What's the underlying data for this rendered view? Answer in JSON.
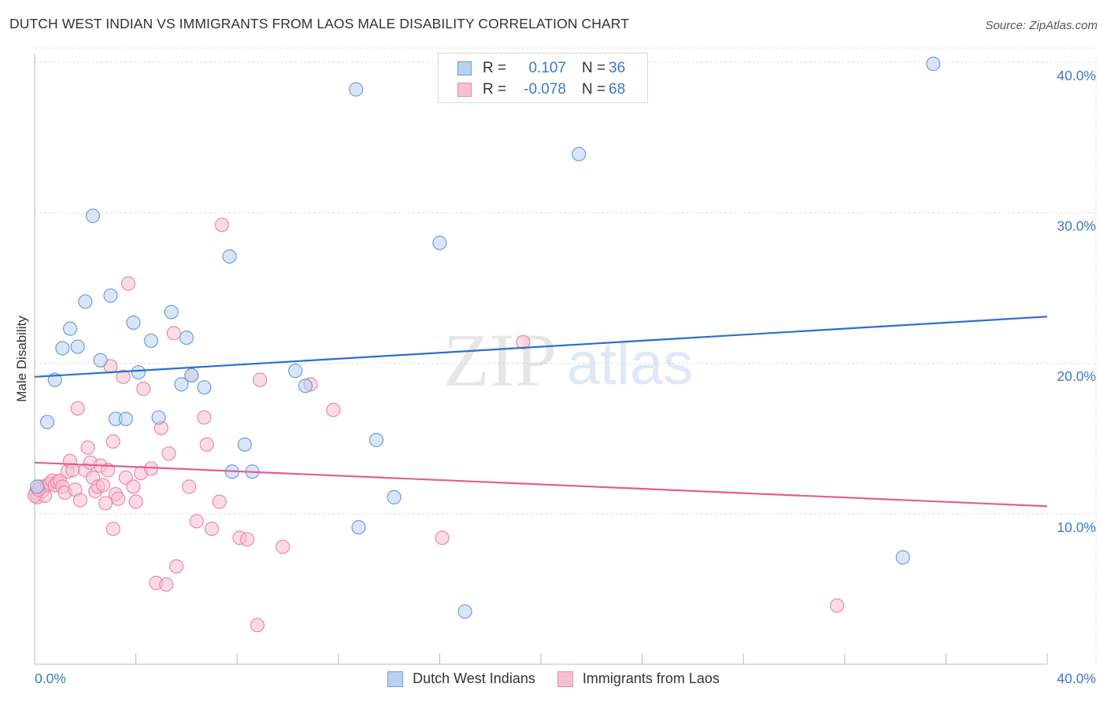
{
  "title": "DUTCH WEST INDIAN VS IMMIGRANTS FROM LAOS MALE DISABILITY CORRELATION CHART",
  "source": "Source: ZipAtlas.com",
  "watermark": {
    "zip": "ZIP",
    "atlas": "atlas"
  },
  "legend_top": {
    "rows": [
      {
        "r_label": "R =",
        "r_value": "0.107",
        "n_label": "N =",
        "n_value": "36"
      },
      {
        "r_label": "R =",
        "r_value": "-0.078",
        "n_label": "N =",
        "n_value": "68"
      }
    ]
  },
  "legend_bottom": [
    "Dutch West Indians",
    "Immigrants from Laos"
  ],
  "colors": {
    "blue_fill": "#b9d1f1",
    "blue_stroke": "#6f9fd8",
    "blue_line": "#2c6fcb",
    "pink_fill": "#f7bfd0",
    "pink_stroke": "#e98aa8",
    "pink_line": "#e0608f",
    "tick_text": "#3c79c7",
    "grid": "#dddddd"
  },
  "chart_data": {
    "type": "scatter",
    "title": "DUTCH WEST INDIAN VS IMMIGRANTS FROM LAOS MALE DISABILITY CORRELATION CHART",
    "xlabel": "",
    "ylabel": "Male Disability",
    "xlim": [
      0,
      40
    ],
    "ylim": [
      0,
      41
    ],
    "x_tick_labels": [
      "0.0%",
      "40.0%"
    ],
    "y_ticks": [
      10,
      20,
      30,
      40
    ],
    "y_tick_labels": [
      "10.0%",
      "20.0%",
      "30.0%",
      "40.0%"
    ],
    "grid": true,
    "series": [
      {
        "name": "Dutch West Indians",
        "r": 0.107,
        "n": 36,
        "trend": {
          "x": [
            0,
            40
          ],
          "y": [
            19.1,
            23.1
          ]
        },
        "points": [
          [
            0.1,
            11.8
          ],
          [
            0.5,
            16.1
          ],
          [
            0.8,
            18.9
          ],
          [
            1.1,
            21.0
          ],
          [
            1.4,
            22.3
          ],
          [
            1.7,
            21.1
          ],
          [
            2.0,
            24.1
          ],
          [
            2.3,
            29.8
          ],
          [
            2.6,
            20.2
          ],
          [
            3.0,
            24.5
          ],
          [
            3.2,
            16.3
          ],
          [
            3.6,
            16.3
          ],
          [
            3.9,
            22.7
          ],
          [
            4.1,
            19.4
          ],
          [
            4.6,
            21.5
          ],
          [
            4.9,
            16.4
          ],
          [
            5.4,
            23.4
          ],
          [
            5.8,
            18.6
          ],
          [
            6.0,
            21.7
          ],
          [
            6.2,
            19.2
          ],
          [
            6.7,
            18.4
          ],
          [
            7.7,
            27.1
          ],
          [
            7.8,
            12.8
          ],
          [
            8.3,
            14.6
          ],
          [
            8.6,
            12.8
          ],
          [
            10.3,
            19.5
          ],
          [
            10.7,
            18.5
          ],
          [
            12.7,
            38.2
          ],
          [
            12.8,
            9.1
          ],
          [
            13.5,
            14.9
          ],
          [
            14.2,
            11.1
          ],
          [
            16.0,
            28.0
          ],
          [
            17.0,
            3.5
          ],
          [
            21.5,
            33.9
          ],
          [
            34.3,
            7.1
          ],
          [
            35.5,
            39.9
          ]
        ]
      },
      {
        "name": "Immigrants from Laos",
        "r": -0.078,
        "n": 68,
        "trend": {
          "x": [
            0,
            40
          ],
          "y": [
            13.4,
            10.5
          ]
        },
        "points": [
          [
            0.05,
            11.4
          ],
          [
            0.1,
            11.1
          ],
          [
            0.2,
            11.8
          ],
          [
            0.3,
            11.5
          ],
          [
            0.4,
            11.2
          ],
          [
            0.5,
            11.9
          ],
          [
            0.6,
            12.0
          ],
          [
            0.7,
            12.2
          ],
          [
            0.8,
            11.9
          ],
          [
            0.9,
            12.1
          ],
          [
            1.0,
            12.2
          ],
          [
            1.1,
            11.8
          ],
          [
            1.2,
            11.4
          ],
          [
            1.3,
            12.8
          ],
          [
            1.4,
            13.5
          ],
          [
            1.5,
            12.9
          ],
          [
            1.6,
            11.6
          ],
          [
            1.7,
            17.0
          ],
          [
            1.8,
            10.9
          ],
          [
            2.0,
            12.9
          ],
          [
            2.1,
            14.4
          ],
          [
            2.2,
            13.4
          ],
          [
            2.3,
            12.4
          ],
          [
            2.4,
            11.5
          ],
          [
            2.5,
            11.8
          ],
          [
            2.6,
            13.2
          ],
          [
            2.7,
            11.9
          ],
          [
            2.8,
            10.7
          ],
          [
            2.9,
            12.9
          ],
          [
            3.0,
            19.8
          ],
          [
            3.1,
            9.0
          ],
          [
            3.1,
            14.8
          ],
          [
            3.2,
            11.3
          ],
          [
            3.3,
            11.0
          ],
          [
            3.5,
            19.1
          ],
          [
            3.6,
            12.4
          ],
          [
            3.7,
            25.3
          ],
          [
            3.9,
            11.8
          ],
          [
            4.0,
            10.8
          ],
          [
            4.2,
            12.7
          ],
          [
            4.3,
            18.3
          ],
          [
            4.6,
            13.0
          ],
          [
            4.8,
            5.4
          ],
          [
            5.0,
            15.7
          ],
          [
            5.2,
            5.3
          ],
          [
            5.3,
            14.0
          ],
          [
            5.5,
            22.0
          ],
          [
            5.6,
            6.5
          ],
          [
            6.1,
            11.8
          ],
          [
            6.2,
            19.2
          ],
          [
            6.4,
            9.5
          ],
          [
            6.7,
            16.4
          ],
          [
            6.8,
            14.6
          ],
          [
            7.0,
            9.0
          ],
          [
            7.3,
            10.8
          ],
          [
            7.4,
            29.2
          ],
          [
            8.1,
            8.4
          ],
          [
            8.4,
            8.3
          ],
          [
            8.8,
            2.6
          ],
          [
            8.9,
            18.9
          ],
          [
            9.8,
            7.8
          ],
          [
            10.9,
            18.6
          ],
          [
            11.8,
            16.9
          ],
          [
            16.1,
            8.4
          ],
          [
            19.3,
            21.4
          ],
          [
            31.7,
            3.9
          ],
          [
            0.0,
            11.2
          ],
          [
            0.15,
            11.6
          ]
        ]
      }
    ]
  }
}
